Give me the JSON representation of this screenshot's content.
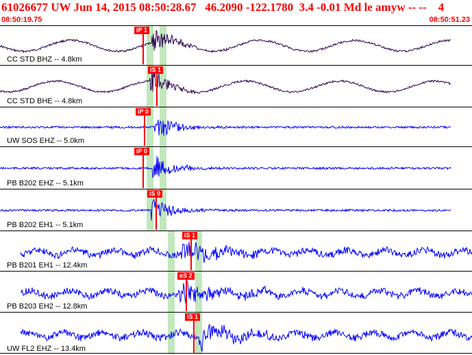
{
  "header": {
    "title": "61026677 UW Jun 14, 2015 08:50:28.67   46.2090 -122.1780  3.4 -0.01 Md le amyw -- --    4",
    "time_start": "08:50:19.75",
    "time_end": "08:50:51.23"
  },
  "colors": {
    "title": "#ff0000",
    "pick": "#ff0000",
    "band": "#b7e3b0",
    "trace_dark": "#2a0050",
    "trace_blue": "#0000ff"
  },
  "panels": [
    {
      "label": "CC STD BHZ -- 4.8km",
      "pick": "iP 1",
      "color": "#2a0050"
    },
    {
      "label": "CC STD BHE -- 4.8km",
      "pick": "iS 1",
      "color": "#2a0050"
    },
    {
      "label": "UW SOS EHZ -- 5.0km",
      "pick": "iP 0",
      "color": "#0000ff"
    },
    {
      "label": "PB B202 EHZ -- 5.1km",
      "pick": "iP 0",
      "color": "#0000ff"
    },
    {
      "label": "PB B202 EH1 -- 5.1km",
      "pick": "iS 0",
      "color": "#0000ff"
    },
    {
      "label": "PB B201 EH1 -- 12.4km",
      "pick": "iS 1",
      "color": "#0000ff"
    },
    {
      "label": "PB B203 EH2 -- 12.8km",
      "pick": "eS 2",
      "color": "#0000ff"
    },
    {
      "label": "UW FL2 EHZ -- 13.4km",
      "pick": "iS 1",
      "color": "#0000ff"
    }
  ]
}
